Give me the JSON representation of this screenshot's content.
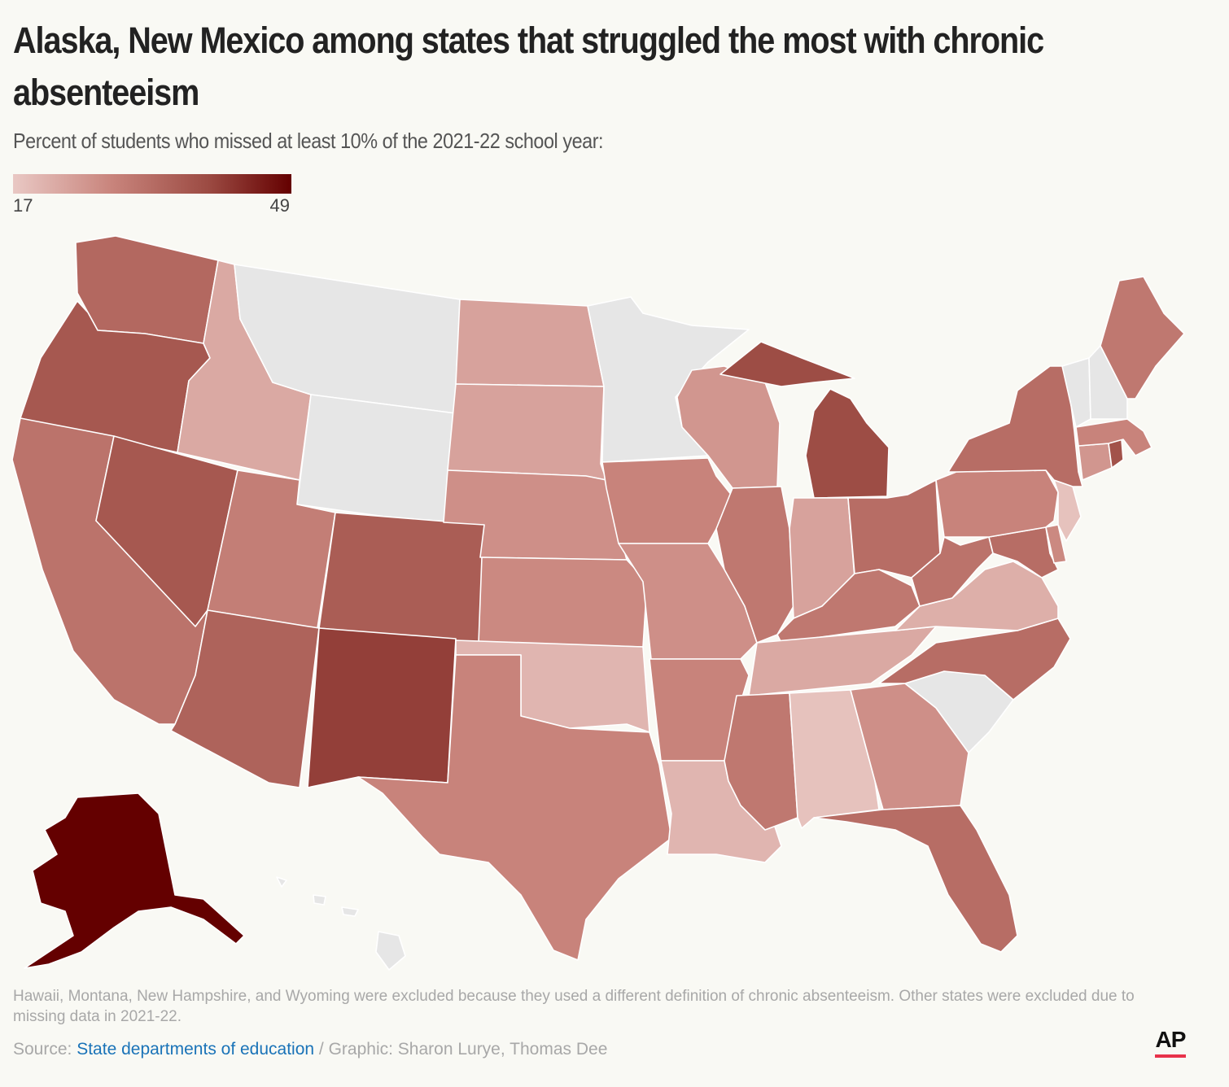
{
  "header": {
    "title": "Alaska, New Mexico among states that struggled the most with chronic absenteeism",
    "subtitle": "Percent of students who missed at least 10% of the 2021-22 school year:"
  },
  "legend": {
    "min_label": "17",
    "max_label": "49",
    "min": 17,
    "max": 49,
    "colors": [
      "#e9c8c4",
      "#c9857d",
      "#9c4b43",
      "#640000"
    ]
  },
  "no_data_color": "#e6e6e6",
  "chart_data": {
    "type": "choropleth",
    "title": "Alaska, New Mexico among states that struggled the most with chronic absenteeism",
    "subtitle": "Percent of students who missed at least 10% of the 2021-22 school year:",
    "scale_range": [
      17,
      49
    ],
    "states": [
      {
        "name": "Alaska",
        "value": 49
      },
      {
        "name": "New Mexico",
        "value": 40
      },
      {
        "name": "Michigan",
        "value": 38
      },
      {
        "name": "Rhode Island",
        "value": 37
      },
      {
        "name": "Oregon",
        "value": 36
      },
      {
        "name": "Nevada",
        "value": 36
      },
      {
        "name": "Colorado",
        "value": 35
      },
      {
        "name": "Arizona",
        "value": 34
      },
      {
        "name": "Washington",
        "value": 33
      },
      {
        "name": "New York",
        "value": 32
      },
      {
        "name": "Ohio",
        "value": 32
      },
      {
        "name": "Florida",
        "value": 32
      },
      {
        "name": "North Carolina",
        "value": 32
      },
      {
        "name": "Maryland",
        "value": 32
      },
      {
        "name": "California",
        "value": 31
      },
      {
        "name": "West Virginia",
        "value": 31
      },
      {
        "name": "Kentucky",
        "value": 30
      },
      {
        "name": "Illinois",
        "value": 30
      },
      {
        "name": "Maine",
        "value": 30
      },
      {
        "name": "Mississippi",
        "value": 30
      },
      {
        "name": "Utah",
        "value": 29
      },
      {
        "name": "Texas",
        "value": 28
      },
      {
        "name": "Arkansas",
        "value": 28
      },
      {
        "name": "Iowa",
        "value": 28
      },
      {
        "name": "Kansas",
        "value": 27
      },
      {
        "name": "Pennsylvania",
        "value": 28
      },
      {
        "name": "Massachusetts",
        "value": 28
      },
      {
        "name": "Missouri",
        "value": 26
      },
      {
        "name": "Nebraska",
        "value": 26
      },
      {
        "name": "Georgia",
        "value": 26
      },
      {
        "name": "Wisconsin",
        "value": 25
      },
      {
        "name": "Connecticut",
        "value": 25
      },
      {
        "name": "Delaware",
        "value": 27
      },
      {
        "name": "Indiana",
        "value": 23
      },
      {
        "name": "North Dakota",
        "value": 23
      },
      {
        "name": "South Dakota",
        "value": 23
      },
      {
        "name": "Idaho",
        "value": 22
      },
      {
        "name": "Virginia",
        "value": 21
      },
      {
        "name": "Tennessee",
        "value": 22
      },
      {
        "name": "Oklahoma",
        "value": 20
      },
      {
        "name": "Louisiana",
        "value": 20
      },
      {
        "name": "Alabama",
        "value": 18
      },
      {
        "name": "New Jersey",
        "value": 18
      },
      {
        "name": "Montana",
        "value": null
      },
      {
        "name": "Wyoming",
        "value": null
      },
      {
        "name": "Minnesota",
        "value": null
      },
      {
        "name": "South Carolina",
        "value": null
      },
      {
        "name": "Vermont",
        "value": null
      },
      {
        "name": "New Hampshire",
        "value": null
      },
      {
        "name": "Hawaii",
        "value": null
      }
    ]
  },
  "footer": {
    "note": "Hawaii, Montana, New Hampshire, and Wyoming were excluded because they used a different definition of chronic absenteeism. Other states were excluded due to missing data in 2021-22.",
    "source_prefix": "Source: ",
    "source_link": "State departments of education",
    "source_suffix": " / Graphic: Sharon Lurye, Thomas Dee",
    "logo": "AP"
  }
}
